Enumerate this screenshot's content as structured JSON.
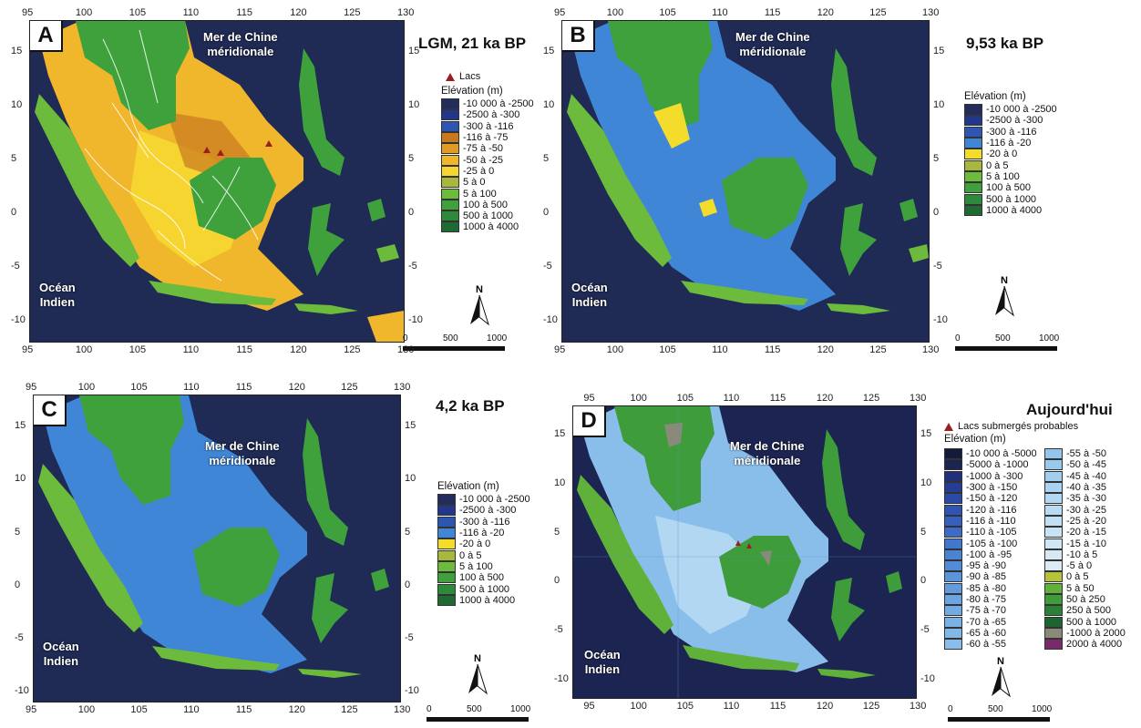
{
  "panels": {
    "A": {
      "letter": "A",
      "title": "LGM, 21 ka BP",
      "lakes_label": "Lacs",
      "legend_title": "Elévation (m)",
      "legend": [
        {
          "label": "-10 000 à -2500",
          "color": "#222d5e"
        },
        {
          "label": "-2500 à -300",
          "color": "#23378a"
        },
        {
          "label": "-300 à -116",
          "color": "#2c56b0"
        },
        {
          "label": "-116 à -75",
          "color": "#c8781f"
        },
        {
          "label": "-75 à -50",
          "color": "#e09a26"
        },
        {
          "label": "-50 à -25",
          "color": "#f0b72c"
        },
        {
          "label": "-25 à 0",
          "color": "#f7d531"
        },
        {
          "label": "5 à 0",
          "color": "#a7b83a"
        },
        {
          "label": "5 à 100",
          "color": "#6cbb3c"
        },
        {
          "label": "100 à 500",
          "color": "#3fa13c"
        },
        {
          "label": "500 à 1000",
          "color": "#2d8a3a"
        },
        {
          "label": "1000 à 4000",
          "color": "#1e6a32"
        }
      ],
      "sea_label_1": "Mer de Chine",
      "sea_label_2": "méridionale",
      "ocean_label_1": "Océan",
      "ocean_label_2": "Indien"
    },
    "B": {
      "letter": "B",
      "title": "9,53 ka BP",
      "legend_title": "Elévation (m)",
      "legend": [
        {
          "label": "-10 000 à -2500",
          "color": "#222d5e"
        },
        {
          "label": "-2500 à -300",
          "color": "#23378a"
        },
        {
          "label": "-300 à -116",
          "color": "#2c56b0"
        },
        {
          "label": "-116 à -20",
          "color": "#3f86d6"
        },
        {
          "label": "-20 à 0",
          "color": "#f3dc2c"
        },
        {
          "label": "0 à 5",
          "color": "#a7b83a"
        },
        {
          "label": "5 à 100",
          "color": "#6cbb3c"
        },
        {
          "label": "100 à 500",
          "color": "#3fa13c"
        },
        {
          "label": "500 à 1000",
          "color": "#2d8a3a"
        },
        {
          "label": "1000 à 4000",
          "color": "#1e6a32"
        }
      ],
      "sea_label_1": "Mer de Chine",
      "sea_label_2": "méridionale",
      "ocean_label_1": "Océan",
      "ocean_label_2": "Indien"
    },
    "C": {
      "letter": "C",
      "title": "4,2 ka BP",
      "legend_title": "Elévation (m)",
      "legend": [
        {
          "label": "-10 000 à -2500",
          "color": "#222d5e"
        },
        {
          "label": "-2500 à -300",
          "color": "#23378a"
        },
        {
          "label": "-300 à -116",
          "color": "#2c56b0"
        },
        {
          "label": "-116 à -20",
          "color": "#3f86d6"
        },
        {
          "label": "-20 à 0",
          "color": "#f3dc2c"
        },
        {
          "label": "0 à 5",
          "color": "#a7b83a"
        },
        {
          "label": "5 à 100",
          "color": "#6cbb3c"
        },
        {
          "label": "100 à 500",
          "color": "#3fa13c"
        },
        {
          "label": "500 à 1000",
          "color": "#2d8a3a"
        },
        {
          "label": "1000 à 4000",
          "color": "#1e6a32"
        }
      ],
      "sea_label_1": "Mer de Chine",
      "sea_label_2": "méridionale",
      "ocean_label_1": "Océan",
      "ocean_label_2": "Indien"
    },
    "D": {
      "letter": "D",
      "title": "Aujourd'hui",
      "lakes_label": "Lacs submergés probables",
      "legend_title": "Elévation (m)",
      "legend_col1": [
        {
          "label": "-10 000 à -5000",
          "color": "#141a3a"
        },
        {
          "label": "-5000 à -1000",
          "color": "#1c2552"
        },
        {
          "label": "-1000 à -300",
          "color": "#22307a"
        },
        {
          "label": "-300 à -150",
          "color": "#273d95"
        },
        {
          "label": "-150 à -120",
          "color": "#2b49a6"
        },
        {
          "label": "-120 à -116",
          "color": "#2f54b4"
        },
        {
          "label": "-116 à -110",
          "color": "#3560bf"
        },
        {
          "label": "-110 à -105",
          "color": "#3b6cc8"
        },
        {
          "label": "-105 à -100",
          "color": "#4277cf"
        },
        {
          "label": "-100 à -95",
          "color": "#4a82d4"
        },
        {
          "label": "-95 à -90",
          "color": "#528bd8"
        },
        {
          "label": "-90 à -85",
          "color": "#5a94db"
        },
        {
          "label": "-85 à -80",
          "color": "#629cde"
        },
        {
          "label": "-80 à -75",
          "color": "#6aa4e1"
        },
        {
          "label": "-75 à -70",
          "color": "#72abe3"
        },
        {
          "label": "-70 à -65",
          "color": "#7ab2e6"
        },
        {
          "label": "-65 à -60",
          "color": "#82b8e8"
        },
        {
          "label": "-60 à -55",
          "color": "#8abeea"
        }
      ],
      "legend_col2": [
        {
          "label": "-55 à -50",
          "color": "#92c4ec"
        },
        {
          "label": "-50 à -45",
          "color": "#9ac9ee"
        },
        {
          "label": "-45 à -40",
          "color": "#a2cef0"
        },
        {
          "label": "-40 à -35",
          "color": "#aad3f1"
        },
        {
          "label": "-35 à -30",
          "color": "#b2d7f2"
        },
        {
          "label": "-30 à -25",
          "color": "#badcf3"
        },
        {
          "label": "-25 à -20",
          "color": "#c1e0f4"
        },
        {
          "label": "-20 à -15",
          "color": "#c8e3f4"
        },
        {
          "label": "-15 à -10",
          "color": "#cfe6f4"
        },
        {
          "label": "-10 à 5",
          "color": "#d6e9f3"
        },
        {
          "label": "-5 à 0",
          "color": "#dcebf2"
        },
        {
          "label": "0 à 5",
          "color": "#b6c23a"
        },
        {
          "label": "5 à 50",
          "color": "#5fb13a"
        },
        {
          "label": "50 à 250",
          "color": "#3e9c3a"
        },
        {
          "label": "250 à 500",
          "color": "#2c7f36"
        },
        {
          "label": "500 à 1000",
          "color": "#1f6430"
        },
        {
          "label": "-1000 à 2000",
          "color": "#8a8a7a"
        },
        {
          "label": "2000 à 4000",
          "color": "#7a2a6a"
        }
      ],
      "sea_label_1": "Mer de Chine",
      "sea_label_2": "méridionale",
      "ocean_label_1": "Océan",
      "ocean_label_2": "Indien"
    }
  },
  "axes": {
    "longitudes": [
      "95",
      "100",
      "105",
      "110",
      "115",
      "120",
      "125",
      "130"
    ],
    "latitudes": [
      "15",
      "10",
      "5",
      "0",
      "-5",
      "-10"
    ]
  },
  "north_label": "N",
  "scale": {
    "start": "0",
    "mid": "500",
    "end": "1000"
  },
  "colors": {
    "deep_ocean": "#1f2a55",
    "shelf_lgm_exposed": "#f0b72c",
    "shelf_submerged": "#3f86d6",
    "land_low": "#6cbb3c",
    "land_high": "#2d8a3a",
    "rivers": "#ffffff",
    "lake_marker": "#9b1f1f"
  }
}
